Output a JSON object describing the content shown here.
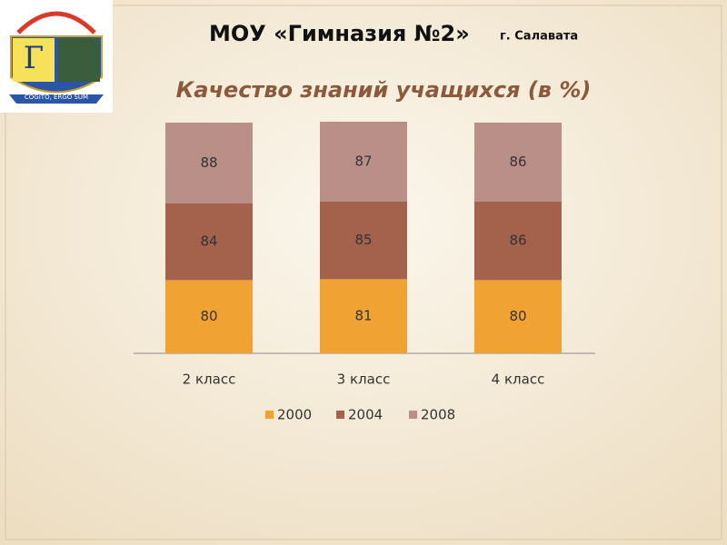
{
  "header": {
    "title": "МОУ «Гимназия №2»",
    "city": "г. Салавата"
  },
  "logo": {
    "letter": "Г",
    "motto": "COGITO, ERGO SUM"
  },
  "chart_data": {
    "type": "bar",
    "stacked": true,
    "title": "Качество знаний учащихся (в %)",
    "categories": [
      "2 класс",
      "3 класс",
      "4 класс"
    ],
    "series": [
      {
        "name": "2000",
        "color": "#f0a332",
        "values": [
          80,
          81,
          80
        ]
      },
      {
        "name": "2004",
        "color": "#a4624c",
        "values": [
          84,
          85,
          86
        ]
      },
      {
        "name": "2008",
        "color": "#b98f88",
        "values": [
          88,
          87,
          86
        ]
      }
    ],
    "legend": "bottom"
  }
}
